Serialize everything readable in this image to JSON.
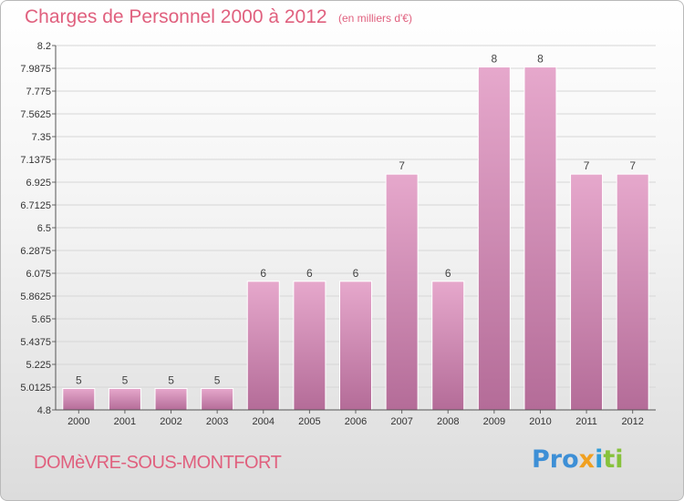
{
  "header": {
    "title": "Charges de Personnel 2000 à 2012",
    "unit": "(en milliers d'€)"
  },
  "footer": {
    "commune": "DOMèVRE-SOUS-MONTFORT",
    "logo_parts": [
      "Pro",
      "x",
      "i",
      "ti"
    ]
  },
  "colors": {
    "accent": "#e0607e",
    "bar_top": "#e6a8cc",
    "bar_bottom": "#b46c98",
    "grid": "#d6d6d6"
  },
  "chart_data": {
    "type": "bar",
    "categories": [
      "2000",
      "2001",
      "2002",
      "2003",
      "2004",
      "2005",
      "2006",
      "2007",
      "2008",
      "2009",
      "2010",
      "2011",
      "2012"
    ],
    "values": [
      5,
      5,
      5,
      5,
      6,
      6,
      6,
      7,
      6,
      8,
      8,
      7,
      7
    ],
    "data_labels": [
      "5",
      "5",
      "5",
      "5",
      "6",
      "6",
      "6",
      "7",
      "6",
      "8",
      "8",
      "7",
      "7"
    ],
    "title": "Charges de Personnel 2000 à 2012",
    "ylabel": "(en milliers d'€)",
    "ylim": [
      4.8,
      8.2
    ],
    "yticks": [
      "4.8",
      "5.0125",
      "5.225",
      "5.4375",
      "5.65",
      "5.8625",
      "6.075",
      "6.2875",
      "6.5",
      "6.7125",
      "6.925",
      "7.1375",
      "7.35",
      "7.5625",
      "7.775",
      "7.9875",
      "8.2"
    ],
    "grid": true,
    "legend": "none"
  }
}
